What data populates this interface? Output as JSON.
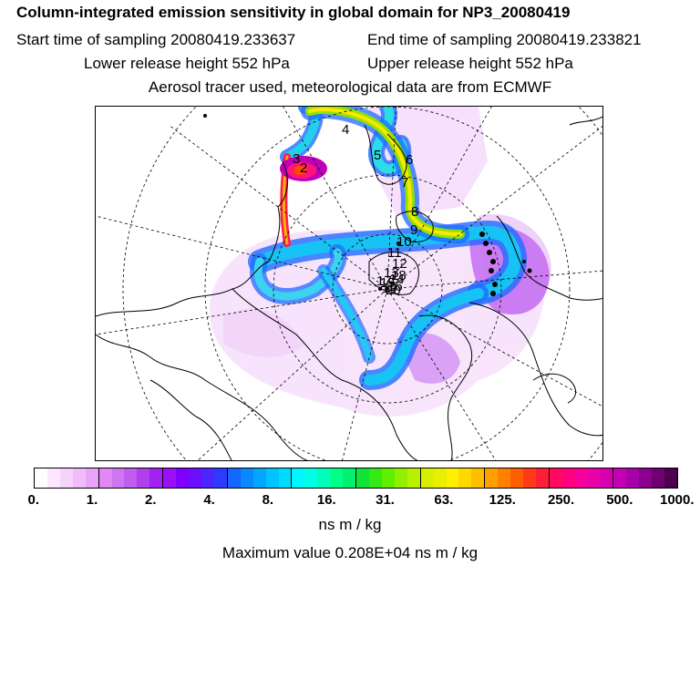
{
  "title": "Column-integrated emission sensitivity in global domain for NP3_20080419",
  "sampling": {
    "start": "Start time of sampling 20080419.233637",
    "end": "End time of sampling 20080419.233821"
  },
  "release": {
    "lower": "Lower release height  552 hPa",
    "upper": "Upper release height  552 hPa"
  },
  "tracer_note": "Aerosol tracer used, meteorological data are from ECMWF",
  "map": {
    "projection": "polar stereographic, north pole centred",
    "day_labels": [
      "2",
      "3",
      "4",
      "5",
      "6",
      "7",
      "8",
      "9",
      "10",
      "11",
      "12",
      "13",
      "14",
      "15",
      "16",
      "17",
      "18",
      "19",
      "20"
    ]
  },
  "colorbar": {
    "colors": [
      "#ffffff",
      "#fbe8fe",
      "#f6d3fc",
      "#f0bdfa",
      "#e9a3f7",
      "#e287f4",
      "#cc77f0",
      "#c05cee",
      "#b23fec",
      "#a41ff1",
      "#9a10f8",
      "#7f00ff",
      "#6a10ff",
      "#4d26ff",
      "#2e3bff",
      "#1565ff",
      "#0b88ff",
      "#04a7ff",
      "#00c4ff",
      "#00dcff",
      "#00f6ff",
      "#00ffe6",
      "#00ffb8",
      "#00ff88",
      "#00f070",
      "#10e43a",
      "#35e915",
      "#60ef00",
      "#90f000",
      "#b8f200",
      "#d8f000",
      "#eaee00",
      "#fff000",
      "#ffd800",
      "#ffbd00",
      "#ffa000",
      "#ff8000",
      "#ff5e00",
      "#ff3a16",
      "#ff1e3a",
      "#ff0a60",
      "#ff0080",
      "#f5009c",
      "#e800a8",
      "#d700b0",
      "#c400b4",
      "#a800a8",
      "#8c0090",
      "#6e0072",
      "#4e0050"
    ],
    "tick_labels": [
      "0.",
      "1.",
      "2.",
      "4.",
      "8.",
      "16.",
      "31.",
      "63.",
      "125.",
      "250.",
      "500.",
      "1000."
    ]
  },
  "units": "ns m / kg",
  "max_value_text": "Maximum value  0.208E+04 ns m / kg"
}
